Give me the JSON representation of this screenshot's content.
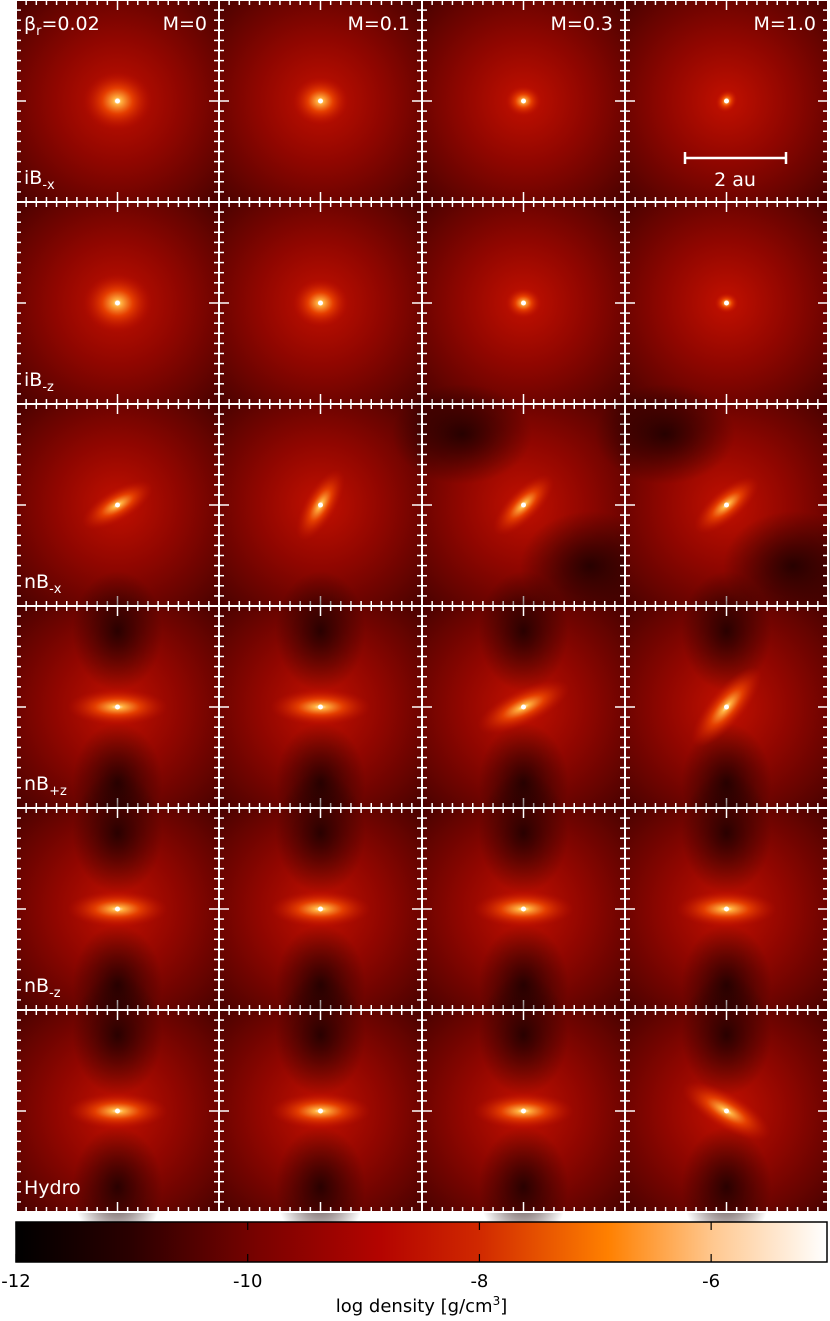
{
  "corner_label": {
    "base": "β",
    "sub": "r",
    "rest": "=0.02"
  },
  "columns": [
    "M=0",
    "M=0.1",
    "M=0.3",
    "M=1.0"
  ],
  "rows": [
    {
      "base": "iB",
      "sub": "-x"
    },
    {
      "base": "iB",
      "sub": "-z"
    },
    {
      "base": "nB",
      "sub": "-x"
    },
    {
      "base": "nB",
      "sub": "+z"
    },
    {
      "base": "nB",
      "sub": "-z"
    },
    {
      "base": "Hydro",
      "sub": ""
    }
  ],
  "scale_bar": "2 au",
  "colorbar": {
    "lim": [
      -12,
      -5
    ],
    "ticks": [
      -12,
      -10,
      -8,
      -6
    ],
    "label": {
      "base": "log density [g/cm",
      "sup": "3",
      "rest": "]"
    }
  }
}
